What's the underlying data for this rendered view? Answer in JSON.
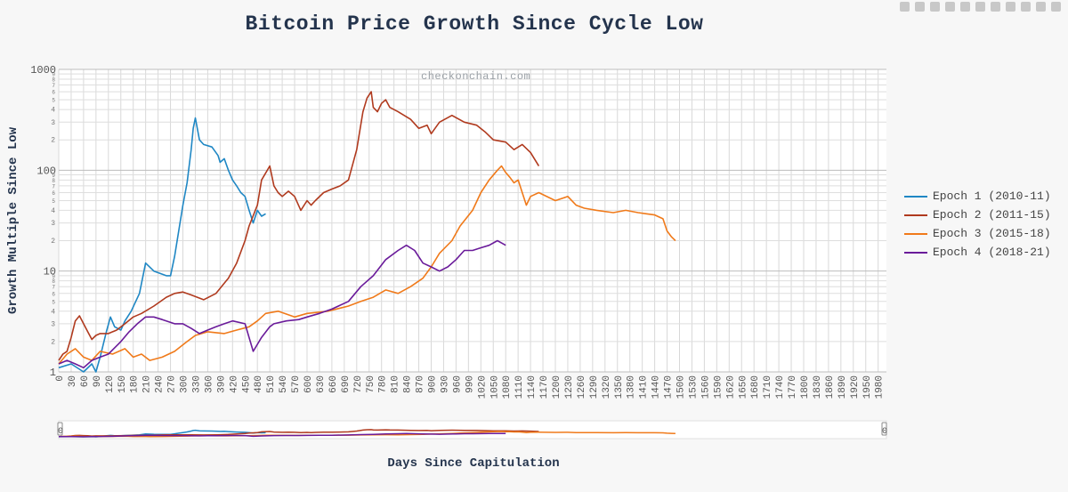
{
  "title": "Bitcoin Price Growth Since Cycle Low",
  "watermark": "checkonchain.com",
  "modebar": [
    "camera-icon",
    "zoom-icon",
    "pan-icon",
    "zoom-in-icon",
    "zoom-out-icon",
    "autoscale-icon",
    "home-icon",
    "spike-icon",
    "hover-closest-icon",
    "hover-compare-icon",
    "plotly-logo-icon"
  ],
  "chart_data": {
    "type": "line",
    "title": "Bitcoin Price Growth Since Cycle Low",
    "xlabel": "Days Since Capitulation",
    "ylabel": "Growth Multiple Since Low",
    "xlim": [
      0,
      2000
    ],
    "ylim": [
      1,
      1000
    ],
    "y_scale": "log",
    "x_ticks": [
      0,
      30,
      60,
      90,
      120,
      150,
      180,
      210,
      240,
      270,
      300,
      330,
      360,
      390,
      420,
      450,
      480,
      510,
      540,
      570,
      600,
      630,
      660,
      690,
      720,
      750,
      780,
      810,
      840,
      870,
      900,
      930,
      960,
      990,
      1020,
      1050,
      1080,
      1110,
      1140,
      1170,
      1200,
      1230,
      1260,
      1290,
      1320,
      1350,
      1380,
      1410,
      1440,
      1470,
      1500,
      1530,
      1560,
      1590,
      1620,
      1650,
      1680,
      1710,
      1740,
      1770,
      1800,
      1830,
      1860,
      1890,
      1920,
      1950,
      1980
    ],
    "y_major_ticks": [
      "1",
      "10",
      "100",
      "1000"
    ],
    "y_minor_labels": [
      "2",
      "3",
      "4",
      "5",
      "6",
      "7",
      "8",
      "9"
    ],
    "grid": true,
    "legend_position": "right",
    "range_slider": true,
    "range_slider_labels": [
      "0",
      "0"
    ],
    "series": [
      {
        "name": "Epoch 1 (2010-11)",
        "color": "#1f87c4",
        "x": [
          0,
          30,
          60,
          80,
          90,
          100,
          115,
          125,
          135,
          150,
          160,
          175,
          195,
          210,
          230,
          260,
          270,
          280,
          290,
          300,
          310,
          320,
          325,
          330,
          340,
          350,
          370,
          385,
          390,
          400,
          410,
          420,
          430,
          440,
          450,
          460,
          470,
          480,
          490,
          500
        ],
        "y": [
          1.1,
          1.2,
          1.0,
          1.2,
          1.0,
          1.4,
          2.5,
          3.5,
          2.8,
          2.6,
          3.2,
          4,
          6,
          12,
          10,
          9,
          9,
          14,
          25,
          45,
          75,
          160,
          260,
          330,
          200,
          180,
          170,
          140,
          120,
          130,
          100,
          80,
          70,
          60,
          55,
          40,
          30,
          40,
          35,
          37
        ]
      },
      {
        "name": "Epoch 2 (2011-15)",
        "color": "#b03a1e",
        "x": [
          0,
          10,
          20,
          30,
          40,
          50,
          60,
          70,
          80,
          90,
          100,
          120,
          140,
          160,
          180,
          200,
          230,
          260,
          280,
          300,
          320,
          350,
          380,
          410,
          430,
          450,
          460,
          480,
          490,
          510,
          520,
          530,
          540,
          555,
          570,
          585,
          600,
          610,
          620,
          640,
          660,
          680,
          700,
          720,
          735,
          745,
          755,
          760,
          770,
          780,
          790,
          800,
          820,
          850,
          870,
          890,
          900,
          920,
          950,
          980,
          1010,
          1030,
          1050,
          1080,
          1100,
          1120,
          1140,
          1160
        ],
        "y": [
          1.3,
          1.5,
          1.6,
          2.2,
          3.2,
          3.6,
          3.0,
          2.5,
          2.1,
          2.3,
          2.4,
          2.4,
          2.6,
          3.0,
          3.5,
          3.8,
          4.5,
          5.5,
          6.0,
          6.2,
          5.8,
          5.2,
          6.0,
          8.5,
          12,
          20,
          28,
          45,
          80,
          110,
          70,
          60,
          55,
          62,
          55,
          40,
          50,
          45,
          50,
          60,
          65,
          70,
          80,
          160,
          380,
          520,
          600,
          420,
          380,
          460,
          500,
          420,
          380,
          320,
          260,
          280,
          230,
          300,
          350,
          300,
          280,
          240,
          200,
          190,
          160,
          180,
          150,
          110
        ]
      },
      {
        "name": "Epoch 3 (2015-18)",
        "color": "#f07a1a",
        "x": [
          0,
          20,
          40,
          60,
          80,
          100,
          130,
          160,
          180,
          200,
          220,
          250,
          280,
          310,
          330,
          360,
          400,
          430,
          460,
          480,
          500,
          530,
          570,
          600,
          650,
          700,
          730,
          760,
          790,
          820,
          850,
          880,
          900,
          920,
          950,
          970,
          1000,
          1020,
          1040,
          1060,
          1070,
          1080,
          1090,
          1100,
          1110,
          1120,
          1130,
          1140,
          1160,
          1200,
          1230,
          1250,
          1270,
          1300,
          1340,
          1370,
          1400,
          1420,
          1440,
          1460,
          1470,
          1480,
          1490
        ],
        "y": [
          1.2,
          1.5,
          1.7,
          1.4,
          1.3,
          1.6,
          1.5,
          1.7,
          1.4,
          1.5,
          1.3,
          1.4,
          1.6,
          2.0,
          2.3,
          2.5,
          2.4,
          2.6,
          2.8,
          3.2,
          3.8,
          4.0,
          3.5,
          3.8,
          4.0,
          4.5,
          5.0,
          5.5,
          6.5,
          6.0,
          7.0,
          8.5,
          11,
          15,
          20,
          28,
          40,
          60,
          80,
          100,
          110,
          95,
          85,
          75,
          80,
          60,
          45,
          55,
          60,
          50,
          55,
          45,
          42,
          40,
          38,
          40,
          38,
          37,
          36,
          33,
          25,
          22,
          20
        ]
      },
      {
        "name": "Epoch 4 (2018-21)",
        "color": "#6a1b9a",
        "x": [
          0,
          20,
          40,
          60,
          80,
          100,
          120,
          150,
          170,
          190,
          210,
          230,
          250,
          280,
          300,
          320,
          340,
          360,
          380,
          400,
          420,
          450,
          470,
          490,
          510,
          520,
          550,
          580,
          600,
          630,
          660,
          700,
          730,
          760,
          790,
          820,
          840,
          860,
          880,
          900,
          920,
          940,
          960,
          980,
          1000,
          1020,
          1040,
          1060,
          1070,
          1080
        ],
        "y": [
          1.2,
          1.3,
          1.2,
          1.1,
          1.3,
          1.4,
          1.5,
          2.0,
          2.5,
          3.0,
          3.5,
          3.5,
          3.3,
          3.0,
          3.0,
          2.7,
          2.4,
          2.6,
          2.8,
          3.0,
          3.2,
          3.0,
          1.6,
          2.2,
          2.8,
          3.0,
          3.2,
          3.3,
          3.5,
          3.8,
          4.2,
          5,
          7,
          9,
          13,
          16,
          18,
          16,
          12,
          11,
          10,
          11,
          13,
          16,
          16,
          17,
          18,
          20,
          19,
          18
        ]
      }
    ]
  }
}
